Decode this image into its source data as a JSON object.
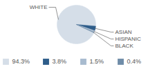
{
  "chart_data": {
    "type": "pie",
    "categories": [
      "WHITE",
      "ASIAN",
      "HISPANIC",
      "BLACK"
    ],
    "values": [
      94.3,
      3.8,
      1.5,
      0.4
    ],
    "value_labels": [
      "94.3%",
      "3.8%",
      "1.5%",
      "0.4%"
    ],
    "colors": [
      "#d5dee8",
      "#2e5d8a",
      "#a8bbcf",
      "#6f8ca8"
    ],
    "legend": "bottom"
  }
}
